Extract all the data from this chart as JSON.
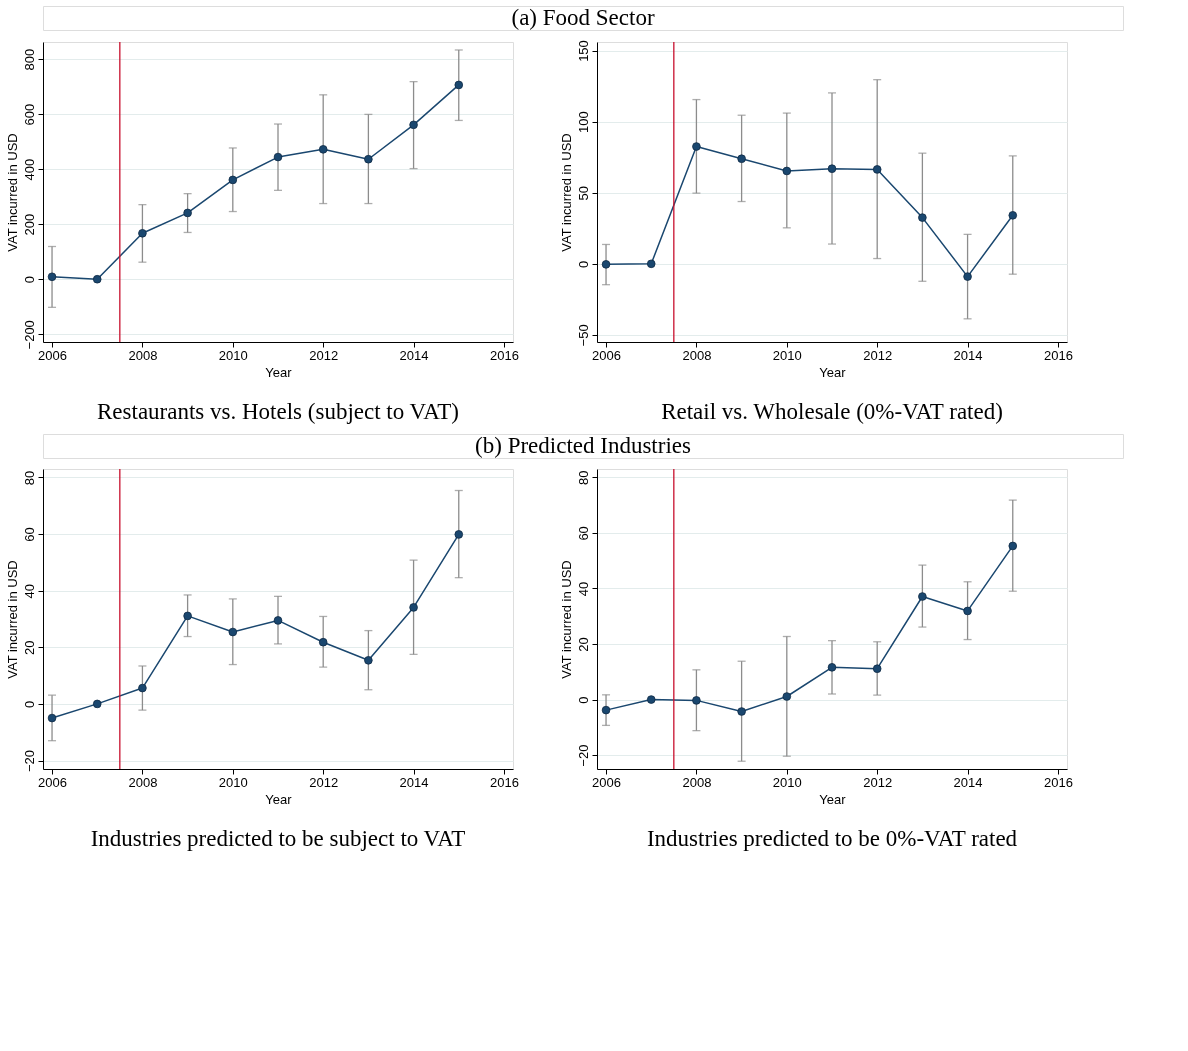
{
  "chart_data": [
    {
      "type": "line",
      "title": "Restaurants vs. Hotels (subject to VAT)",
      "annotations": [
        "(a) Food Sector"
      ],
      "xlabel": "Year",
      "ylabel": "VAT incurred in USD",
      "x": [
        2006,
        2007,
        2008,
        2009,
        2010,
        2011,
        2012,
        2013,
        2014,
        2015
      ],
      "series": [
        {
          "color": "#1a476f",
          "values": [
            9,
            0,
            167,
            241,
            361,
            444,
            472,
            436,
            561,
            706
          ],
          "errors": [
            [
              -102,
              119
            ],
            null,
            [
              62,
              271
            ],
            [
              170,
              311
            ],
            [
              246,
              477
            ],
            [
              323,
              564
            ],
            [
              275,
              670
            ],
            [
              275,
              599
            ],
            [
              402,
              718
            ],
            [
              577,
              833
            ]
          ]
        }
      ],
      "xlim": [
        2005.8,
        2016.2
      ],
      "xticks": [
        2006,
        2008,
        2010,
        2012,
        2014,
        2016
      ],
      "ylim": [
        -228,
        862
      ],
      "yticks": [
        -200,
        0,
        200,
        400,
        600,
        800
      ],
      "ref_lines": [
        {
          "axis": "x",
          "value": 2007.5,
          "color": "#c8102e"
        }
      ],
      "grid": "y",
      "marker": "circle",
      "line_style": "solid",
      "legend": false
    },
    {
      "type": "line",
      "title": "Retail vs. Wholesale (0%-VAT rated)",
      "xlabel": "Year",
      "ylabel": "VAT incurred in USD",
      "x": [
        2006,
        2007,
        2008,
        2009,
        2010,
        2011,
        2012,
        2013,
        2014,
        2015
      ],
      "series": [
        {
          "color": "#1a476f",
          "values": [
            -0.4,
            0,
            82.5,
            73.9,
            65.3,
            66.9,
            66.4,
            32.5,
            -9.0,
            34.1
          ],
          "errors": [
            [
              -14.7,
              13.6
            ],
            null,
            [
              49.7,
              115.5
            ],
            [
              43.8,
              104.5
            ],
            [
              25.3,
              106
            ],
            [
              13.9,
              120.2
            ],
            [
              3.7,
              129.5
            ],
            [
              -12.3,
              77.8
            ],
            [
              -38.7,
              20.7
            ],
            [
              -7.3,
              75.9
            ]
          ]
        }
      ],
      "xlim": [
        2005.8,
        2016.2
      ],
      "xticks": [
        2006,
        2008,
        2010,
        2012,
        2014,
        2016
      ],
      "ylim": [
        -55,
        156
      ],
      "yticks": [
        -50,
        0,
        50,
        100,
        150
      ],
      "ref_lines": [
        {
          "axis": "x",
          "value": 2007.5,
          "color": "#c8102e"
        }
      ],
      "grid": "y",
      "marker": "circle",
      "line_style": "solid",
      "legend": false
    },
    {
      "type": "line",
      "title": "Industries predicted to be subject to VAT",
      "annotations": [
        "(b) Predicted Industries"
      ],
      "xlabel": "Year",
      "ylabel": "VAT incurred in USD",
      "x": [
        2006,
        2007,
        2008,
        2009,
        2010,
        2011,
        2012,
        2013,
        2014,
        2015
      ],
      "series": [
        {
          "color": "#1a476f",
          "values": [
            -5.0,
            0,
            5.6,
            31.1,
            25.4,
            29.5,
            21.8,
            15.4,
            34.1,
            59.9
          ],
          "errors": [
            [
              -13.0,
              3.1
            ],
            null,
            [
              -2.2,
              13.4
            ],
            [
              23.8,
              38.5
            ],
            [
              13.9,
              37.1
            ],
            [
              21.2,
              38.0
            ],
            [
              13.0,
              30.9
            ],
            [
              5.0,
              25.9
            ],
            [
              17.5,
              50.8
            ],
            [
              44.6,
              75.4
            ]
          ]
        }
      ],
      "xlim": [
        2005.8,
        2016.2
      ],
      "xticks": [
        2006,
        2008,
        2010,
        2012,
        2014,
        2016
      ],
      "ylim": [
        -23,
        83
      ],
      "yticks": [
        -20,
        0,
        20,
        40,
        60,
        80
      ],
      "ref_lines": [
        {
          "axis": "x",
          "value": 2007.5,
          "color": "#c8102e"
        }
      ],
      "grid": "y",
      "marker": "circle",
      "line_style": "solid",
      "legend": false
    },
    {
      "type": "line",
      "title": "Industries predicted to be 0%-VAT rated",
      "xlabel": "Year",
      "ylabel": "VAT incurred in USD",
      "x": [
        2006,
        2007,
        2008,
        2009,
        2010,
        2011,
        2012,
        2013,
        2014,
        2015
      ],
      "series": [
        {
          "color": "#1a476f",
          "values": [
            -3.8,
            0,
            -0.3,
            -4.3,
            1.1,
            11.6,
            11.1,
            37.1,
            31.9,
            55.3
          ],
          "errors": [
            [
              -9.3,
              1.7
            ],
            null,
            [
              -11.2,
              10.7
            ],
            [
              -22.2,
              13.8
            ],
            [
              -20.4,
              22.7
            ],
            [
              2.0,
              21.2
            ],
            [
              1.6,
              20.8
            ],
            [
              26.1,
              48.4
            ],
            [
              21.6,
              42.4
            ],
            [
              39.0,
              71.8
            ]
          ]
        }
      ],
      "xlim": [
        2005.8,
        2016.2
      ],
      "xticks": [
        2006,
        2008,
        2010,
        2012,
        2014,
        2016
      ],
      "ylim": [
        -25,
        83
      ],
      "yticks": [
        -20,
        0,
        20,
        40,
        60,
        80
      ],
      "ref_lines": [
        {
          "axis": "x",
          "value": 2007.5,
          "color": "#c8102e"
        }
      ],
      "grid": "y",
      "marker": "circle",
      "line_style": "solid",
      "legend": false
    }
  ]
}
